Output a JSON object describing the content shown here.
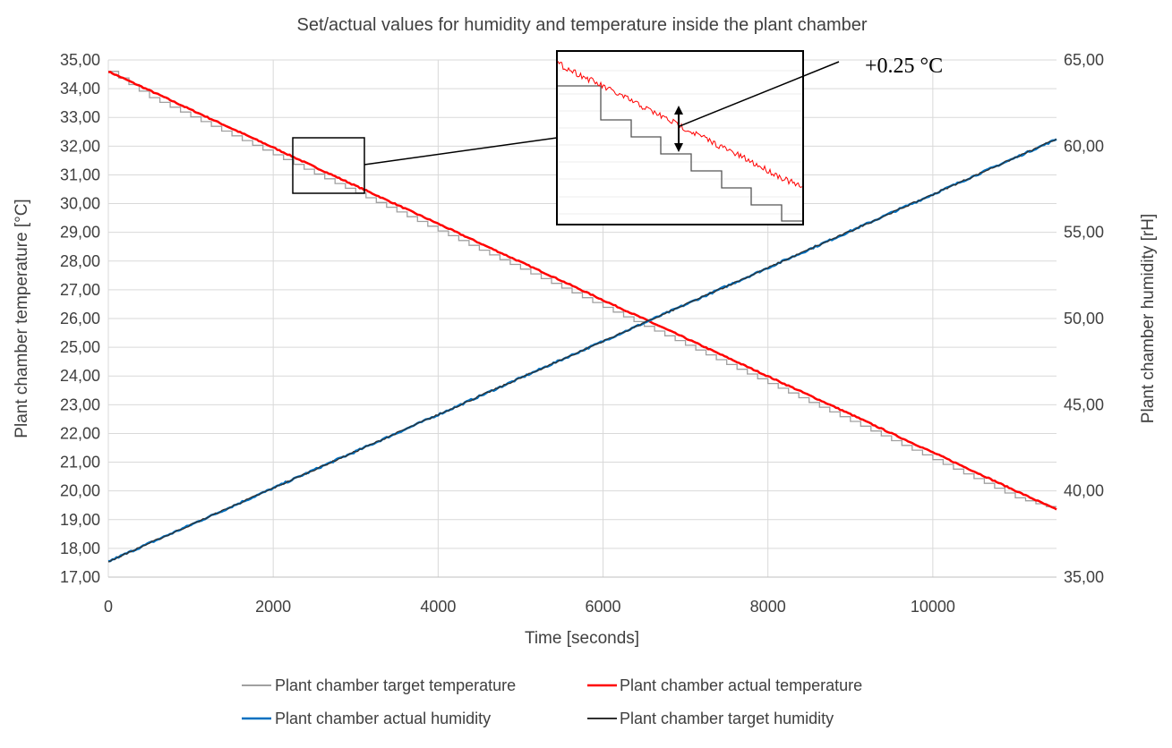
{
  "chart_data": {
    "type": "line",
    "title": "Set/actual values for humidity and temperature inside the plant chamber",
    "xlabel": "Time [seconds]",
    "ylabel_left": "Plant chamber temperature [°C]",
    "ylabel_right": "Plant chamber humidity [rH]",
    "xlim": [
      0,
      11500
    ],
    "ylim_left": [
      17,
      35
    ],
    "ylim_right": [
      35,
      65
    ],
    "x_ticks": [
      "0",
      "2000",
      "4000",
      "6000",
      "8000",
      "10000"
    ],
    "x_tick_values": [
      0,
      2000,
      4000,
      6000,
      8000,
      10000
    ],
    "y_left_ticks": [
      "35,00",
      "34,00",
      "33,00",
      "32,00",
      "31,00",
      "30,00",
      "29,00",
      "28,00",
      "27,00",
      "26,00",
      "25,00",
      "24,00",
      "23,00",
      "22,00",
      "21,00",
      "20,00",
      "19,00",
      "18,00",
      "17,00"
    ],
    "y_right_ticks": [
      "65,00",
      "60,00",
      "55,00",
      "50,00",
      "45,00",
      "40,00",
      "35,00"
    ],
    "grid": true,
    "legend_position": "bottom",
    "x": [
      0,
      500,
      1000,
      1500,
      2000,
      2500,
      3000,
      3500,
      4000,
      4500,
      5000,
      5500,
      6000,
      6500,
      7000,
      7500,
      8000,
      8500,
      9000,
      9500,
      10000,
      10500,
      11000,
      11500
    ],
    "series": [
      {
        "name": "Plant chamber target temperature",
        "axis": "left",
        "color": "#a0a0a0",
        "step": true,
        "values": [
          34.6,
          33.69,
          33.02,
          32.36,
          31.7,
          31.03,
          30.37,
          29.71,
          29.05,
          28.38,
          27.72,
          27.06,
          26.39,
          25.73,
          25.07,
          24.4,
          23.74,
          23.08,
          22.42,
          21.75,
          21.09,
          20.43,
          19.76,
          19.35
        ]
      },
      {
        "name": "Plant chamber actual temperature",
        "axis": "left",
        "color": "#ff0000",
        "step": false,
        "values": [
          34.6,
          33.94,
          33.27,
          32.61,
          31.95,
          31.28,
          30.62,
          29.96,
          29.3,
          28.63,
          27.97,
          27.31,
          26.64,
          25.98,
          25.32,
          24.65,
          23.99,
          23.33,
          22.67,
          22.0,
          21.34,
          20.68,
          20.01,
          19.35
        ]
      },
      {
        "name": "Plant chamber actual humidity",
        "axis": "right",
        "color": "#0070c0",
        "step": false,
        "values": [
          35.9,
          36.97,
          38.03,
          39.1,
          40.16,
          41.23,
          42.29,
          43.36,
          44.42,
          45.49,
          46.55,
          47.62,
          48.68,
          49.75,
          50.81,
          51.88,
          52.94,
          54.01,
          55.07,
          56.14,
          57.2,
          58.27,
          59.33,
          60.4
        ]
      },
      {
        "name": "Plant chamber target humidity",
        "axis": "right",
        "color": "#303030",
        "step": false,
        "values": [
          35.9,
          36.97,
          38.03,
          39.1,
          40.16,
          41.23,
          42.29,
          43.36,
          44.42,
          45.49,
          46.55,
          47.62,
          48.68,
          49.75,
          50.81,
          51.88,
          52.94,
          54.01,
          55.07,
          56.14,
          57.2,
          58.27,
          59.33,
          60.4
        ]
      }
    ],
    "annotations": [
      {
        "text": "+0.25 °C"
      }
    ]
  }
}
